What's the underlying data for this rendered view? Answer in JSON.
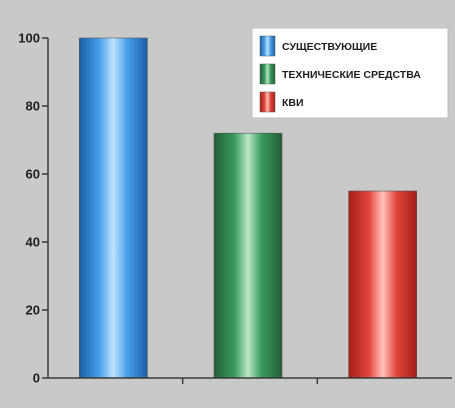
{
  "chart_data": {
    "type": "bar",
    "categories": [
      "",
      "",
      ""
    ],
    "series": [
      {
        "name": "СУЩЕСТВУЮЩИЕ",
        "values": [
          100,
          null,
          null
        ],
        "color": "#3a8fdc"
      },
      {
        "name": "ТЕХНИЧЕСКИЕ СРЕДСТВА",
        "values": [
          null,
          72,
          null
        ],
        "color": "#2f8a4e"
      },
      {
        "name": "КВИ",
        "values": [
          null,
          null,
          55
        ],
        "color": "#dd3a31"
      }
    ],
    "title": "",
    "xlabel": "",
    "ylabel": "",
    "ylim": [
      0,
      100
    ],
    "yticks": [
      "0",
      "20",
      "40",
      "60",
      "80",
      "100"
    ],
    "grid": false,
    "legend_position": "top-right",
    "background_color": "#c9c9c9",
    "axis_color": "#3a3a3a"
  }
}
